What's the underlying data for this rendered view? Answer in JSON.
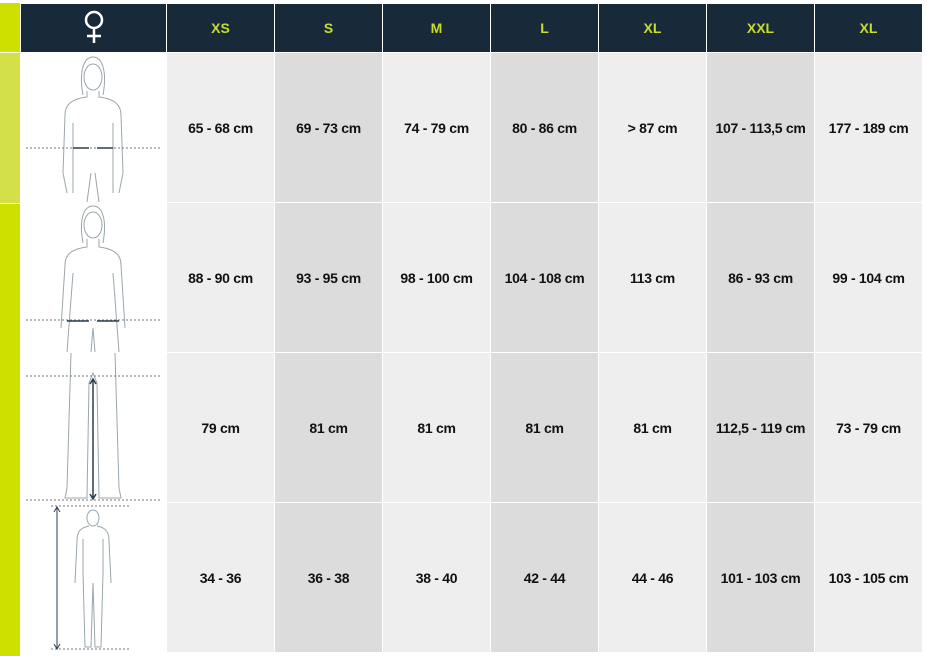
{
  "header": {
    "gender_icon": "female-symbol-icon",
    "sizes": [
      "XS",
      "S",
      "M",
      "L",
      "XL",
      "XXL",
      "XL"
    ]
  },
  "rows": [
    {
      "figure": "waist-measurement-figure",
      "values": [
        "65 - 68 cm",
        "69 - 73 cm",
        "74 - 79 cm",
        "80 - 86 cm",
        "> 87 cm",
        "107 - 113,5 cm",
        "177 - 189 cm"
      ]
    },
    {
      "figure": "hip-measurement-figure",
      "values": [
        "88 - 90 cm",
        "93 - 95 cm",
        "98 - 100 cm",
        "104 - 108 cm",
        "113 cm",
        "86 - 93 cm",
        "99 - 104 cm"
      ]
    },
    {
      "figure": "inseam-measurement-figure",
      "values": [
        "79 cm",
        "81 cm",
        "81 cm",
        "81 cm",
        "81 cm",
        "112,5 - 119 cm",
        "73 - 79 cm"
      ]
    },
    {
      "figure": "height-measurement-figure",
      "values": [
        "34 - 36",
        "36 - 38",
        "38 - 40",
        "42 - 44",
        "44 - 46",
        "101 - 103 cm",
        "103 - 105 cm"
      ]
    }
  ],
  "colors": {
    "header_bg": "#182a3a",
    "header_text": "#c8dc2c",
    "accent": "#cde000",
    "accent_light": "#d4e04a",
    "cell_light": "#eeeeee",
    "cell_dark": "#dcdcdc"
  }
}
